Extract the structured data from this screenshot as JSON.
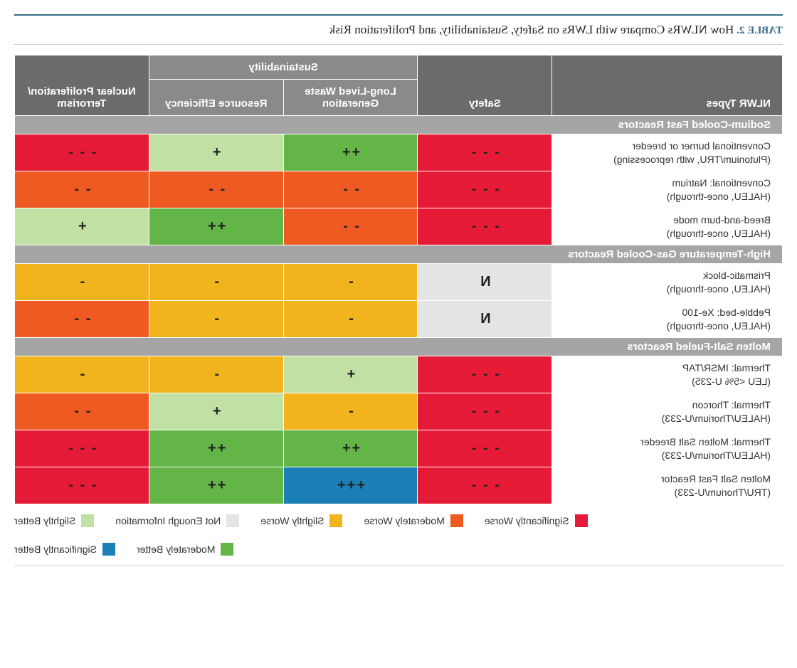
{
  "title": {
    "table_no": "TABLE 2.",
    "text": "How NLWRs Compare with LWRs on Safety, Sustainability, and Proliferation Risk"
  },
  "palette": {
    "sig_worse": "#e51a36",
    "mod_worse": "#ef5a23",
    "sli_worse": "#f1b41c",
    "sli_better": "#c1e0a3",
    "mod_better": "#63b548",
    "sig_better": "#1b7fb5",
    "not_enough": "#e4e4e4",
    "header_dark": "#6b6b6b",
    "header_light": "#8a8a8a",
    "section_bg": "#a5a5a5"
  },
  "headers": {
    "types": "NLWR Types",
    "safety": "Safety",
    "sustain": "Sustainability",
    "waste": "Long-Lived Waste Generation",
    "resource": "Resource Efficiency",
    "prolif": "Nuclear Proliferation/ Terrorism"
  },
  "sections": [
    {
      "title": "Sodium-Cooled Fast Reactors",
      "rows": [
        {
          "name": "Conventional burner or breeder",
          "sub": "(Plutonium/TRU, with reprocessing)",
          "cells": [
            {
              "c": "sig_worse",
              "s": "- - -"
            },
            {
              "c": "mod_better",
              "s": "++"
            },
            {
              "c": "sli_better",
              "s": "+"
            },
            {
              "c": "sig_worse",
              "s": "- - -"
            }
          ]
        },
        {
          "name": "Conventional: Natrium",
          "sub": "(HALEU, once-through)",
          "cells": [
            {
              "c": "sig_worse",
              "s": "- - -"
            },
            {
              "c": "mod_worse",
              "s": "- -"
            },
            {
              "c": "mod_worse",
              "s": "- -"
            },
            {
              "c": "mod_worse",
              "s": "- -"
            }
          ]
        },
        {
          "name": "Breed-and-burn mode",
          "sub": "(HALEU, once-through)",
          "cells": [
            {
              "c": "sig_worse",
              "s": "- - -"
            },
            {
              "c": "mod_worse",
              "s": "- -"
            },
            {
              "c": "mod_better",
              "s": "++"
            },
            {
              "c": "sli_better",
              "s": "+"
            }
          ]
        }
      ]
    },
    {
      "title": "High-Temperature Gas-Cooled Reactors",
      "rows": [
        {
          "name": "Prismatic-block",
          "sub": "(HALEU, once-through)",
          "cells": [
            {
              "c": "not_enough",
              "s": "N"
            },
            {
              "c": "sli_worse",
              "s": "-"
            },
            {
              "c": "sli_worse",
              "s": "-"
            },
            {
              "c": "sli_worse",
              "s": "-"
            }
          ]
        },
        {
          "name": "Pebble-bed: Xe-100",
          "sub": "(HALEU, once-through)",
          "cells": [
            {
              "c": "not_enough",
              "s": "N"
            },
            {
              "c": "sli_worse",
              "s": "-"
            },
            {
              "c": "sli_worse",
              "s": "-"
            },
            {
              "c": "mod_worse",
              "s": "- -"
            }
          ]
        }
      ]
    },
    {
      "title": "Molten Salt-Fueled Reactors",
      "rows": [
        {
          "name": "Thermal: IMSR/TAP",
          "sub": "(LEU <5% U-235)",
          "cells": [
            {
              "c": "sig_worse",
              "s": "- - -"
            },
            {
              "c": "sli_better",
              "s": "+"
            },
            {
              "c": "sli_worse",
              "s": "-"
            },
            {
              "c": "sli_worse",
              "s": "-"
            }
          ]
        },
        {
          "name": "Thermal: Thorcon",
          "sub": "(HALEU/Thorium/U-233)",
          "cells": [
            {
              "c": "sig_worse",
              "s": "- - -"
            },
            {
              "c": "sli_worse",
              "s": "-"
            },
            {
              "c": "sli_better",
              "s": "+"
            },
            {
              "c": "mod_worse",
              "s": "- -"
            }
          ]
        },
        {
          "name": "Thermal: Molten Salt Breeder",
          "sub": "(HALEU/Thorium/U-233)",
          "cells": [
            {
              "c": "sig_worse",
              "s": "- - -"
            },
            {
              "c": "mod_better",
              "s": "++"
            },
            {
              "c": "mod_better",
              "s": "++"
            },
            {
              "c": "sig_worse",
              "s": "- - -"
            }
          ]
        },
        {
          "name": "Molten Salt Fast Reactor",
          "sub": "(TRU/Thorium/U-233)",
          "cells": [
            {
              "c": "sig_worse",
              "s": "- - -"
            },
            {
              "c": "sig_better",
              "s": "+++"
            },
            {
              "c": "mod_better",
              "s": "++"
            },
            {
              "c": "sig_worse",
              "s": "- - -"
            }
          ]
        }
      ]
    }
  ],
  "legend": [
    {
      "c": "sig_worse",
      "label": "Significantly Worse"
    },
    {
      "c": "mod_worse",
      "label": "Moderately Worse"
    },
    {
      "c": "sli_worse",
      "label": "Slightly Worse"
    },
    {
      "c": "not_enough",
      "label": "Not Enough Information"
    },
    {
      "c": "sli_better",
      "label": "Slightly Better"
    },
    {
      "c": "mod_better",
      "label": "Moderately Better"
    },
    {
      "c": "sig_better",
      "label": "Significantly Better"
    }
  ]
}
